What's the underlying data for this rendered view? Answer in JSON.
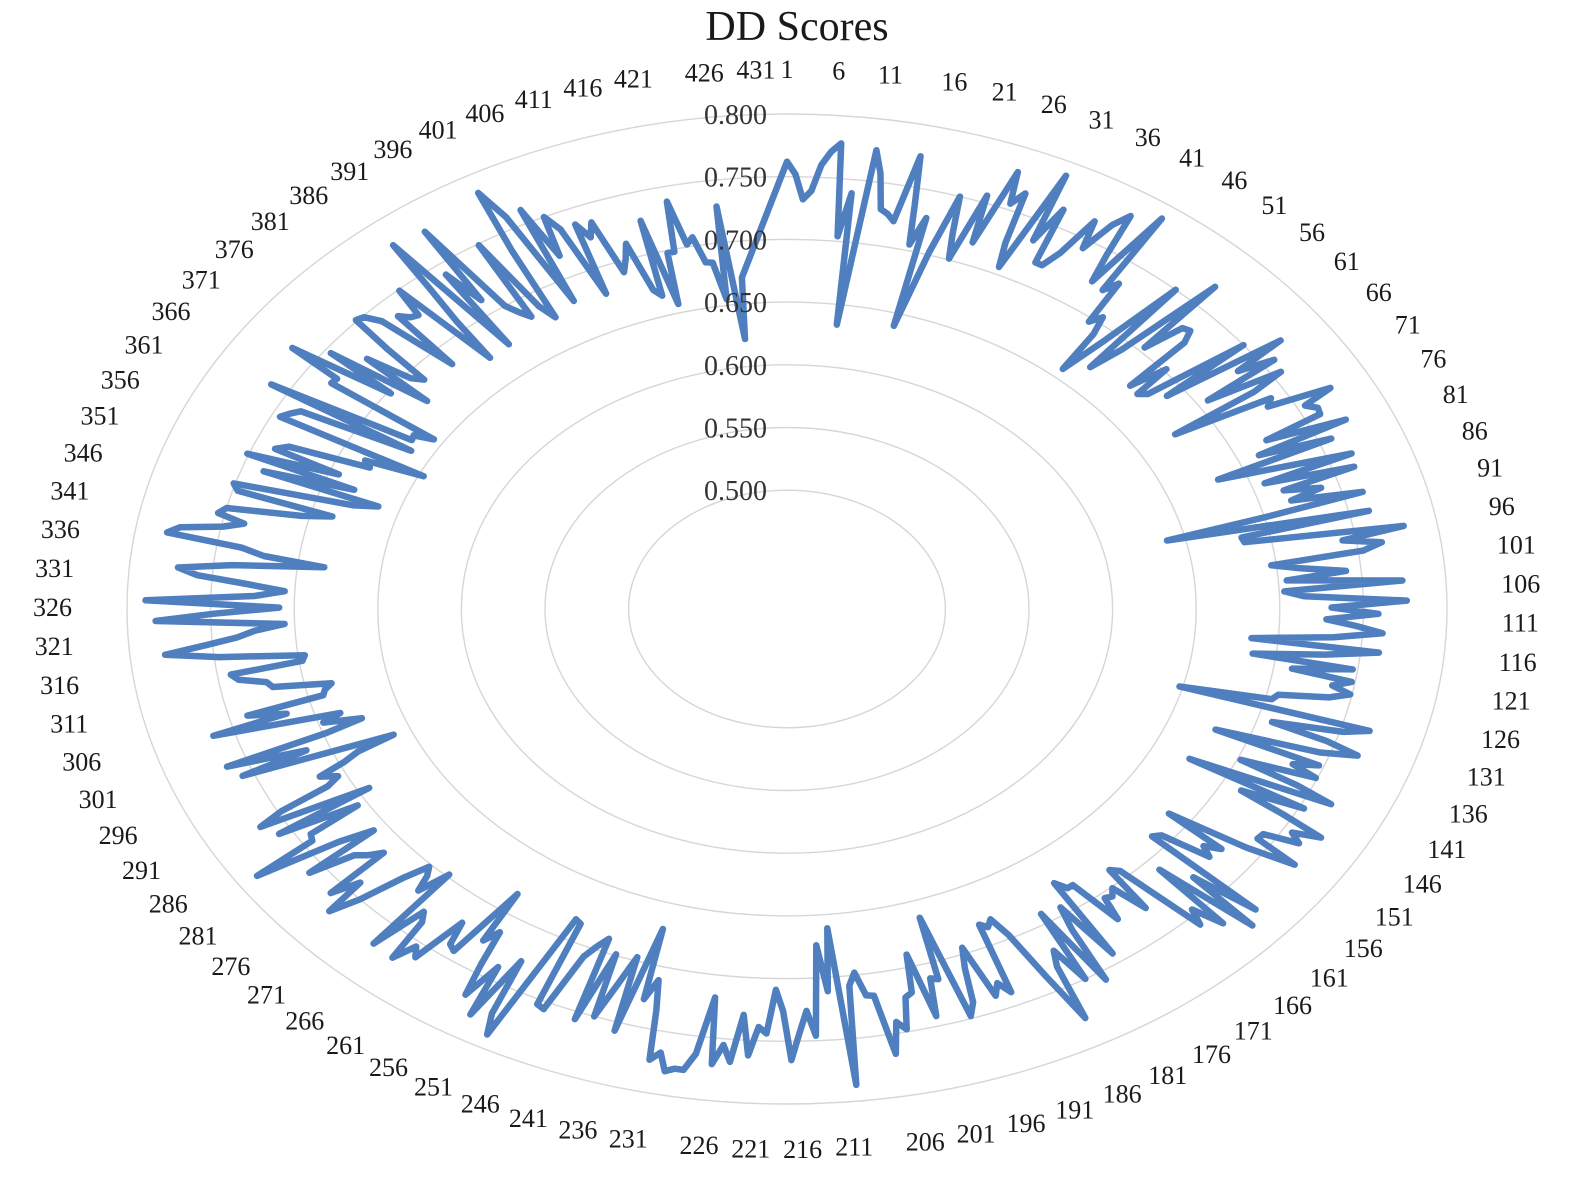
{
  "chart_data": {
    "type": "radar",
    "title": "DD Scores",
    "n_points": 433,
    "label_every": 5,
    "radial_axis": {
      "min": 0.5,
      "max": 0.8,
      "ticks": [
        0.5,
        0.55,
        0.6,
        0.65,
        0.7,
        0.75,
        0.8
      ],
      "tick_labels": [
        "0.500",
        "0.550",
        "0.600",
        "0.650",
        "0.700",
        "0.750",
        "0.800"
      ]
    },
    "series": [
      {
        "color": "#4f7fbf",
        "values": [
          0.762,
          0.752,
          0.732,
          0.739,
          0.76,
          0.771,
          0.778,
          0.704,
          0.739,
          0.634,
          0.775,
          0.757,
          0.729,
          0.726,
          0.721,
          0.775,
          0.738,
          0.705,
          0.728,
          0.64,
          0.702,
          0.75,
          0.721,
          0.701,
          0.756,
          0.718,
          0.78,
          0.755,
          0.766,
          0.725,
          0.706,
          0.789,
          0.734,
          0.764,
          0.719,
          0.719,
          0.733,
          0.765,
          0.743,
          0.768,
          0.78,
          0.747,
          0.724,
          0.789,
          0.722,
          0.732,
          0.697,
          0.705,
          0.691,
          0.658,
          0.691,
          0.75,
          0.67,
          0.693,
          0.768,
          0.704,
          0.731,
          0.733,
          0.724,
          0.677,
          0.702,
          0.676,
          0.681,
          0.75,
          0.689,
          0.77,
          0.735,
          0.758,
          0.707,
          0.756,
          0.734,
          0.676,
          0.74,
          0.735,
          0.775,
          0.755,
          0.761,
          0.76,
          0.722,
          0.772,
          0.713,
          0.758,
          0.683,
          0.719,
          0.765,
          0.708,
          0.763,
          0.717,
          0.739,
          0.719,
          0.762,
          0.7,
          0.639,
          0.762,
          0.683,
          0.684,
          0.78,
          0.742,
          0.765,
          0.753,
          0.697,
          0.714,
          0.741,
          0.705,
          0.774,
          0.703,
          0.715,
          0.776,
          0.731,
          0.759,
          0.728,
          0.746,
          0.762,
          0.733,
          0.684,
          0.761,
          0.729,
          0.686,
          0.747,
          0.711,
          0.748,
          0.737,
          0.749,
          0.737,
          0.707,
          0.704,
          0.648,
          0.767,
          0.752,
          0.709,
          0.745,
          0.766,
          0.744,
          0.679,
          0.747,
          0.732,
          0.749,
          0.702,
          0.741,
          0.766,
          0.674,
          0.753,
          0.713,
          0.744,
          0.773,
          0.756,
          0.764,
          0.742,
          0.741,
          0.771,
          0.739,
          0.686,
          0.728,
          0.718,
          0.726,
          0.693,
          0.689,
          0.774,
          0.729,
          0.781,
          0.71,
          0.767,
          0.746,
          0.758,
          0.694,
          0.689,
          0.726,
          0.701,
          0.706,
          0.704,
          0.722,
          0.684,
          0.684,
          0.676,
          0.742,
          0.694,
          0.713,
          0.757,
          0.692,
          0.75,
          0.721,
          0.733,
          0.777,
          0.736,
          0.697,
          0.681,
          0.686,
          0.682,
          0.739,
          0.729,
          0.738,
          0.695,
          0.711,
          0.738,
          0.748,
          0.664,
          0.714,
          0.712,
          0.742,
          0.69,
          0.72,
          0.723,
          0.748,
          0.741,
          0.766,
          0.718,
          0.717,
          0.698,
          0.708,
          0.787,
          0.661,
          0.711,
          0.674,
          0.746,
          0.726,
          0.744,
          0.765,
          0.726,
          0.709,
          0.744,
          0.739,
          0.762,
          0.73,
          0.768,
          0.755,
          0.771,
          0.718,
          0.764,
          0.778,
          0.778,
          0.781,
          0.767,
          0.774,
          0.735,
          0.711,
          0.728,
          0.671,
          0.757,
          0.697,
          0.722,
          0.75,
          0.699,
          0.756,
          0.689,
          0.697,
          0.708,
          0.756,
          0.754,
          0.685,
          0.683,
          0.789,
          0.773,
          0.728,
          0.78,
          0.739,
          0.768,
          0.743,
          0.715,
          0.726,
          0.684,
          0.743,
          0.74,
          0.722,
          0.761,
          0.754,
          0.77,
          0.737,
          0.73,
          0.769,
          0.698,
          0.72,
          0.708,
          0.702,
          0.72,
          0.75,
          0.77,
          0.741,
          0.76,
          0.715,
          0.724,
          0.73,
          0.76,
          0.709,
          0.731,
          0.787,
          0.744,
          0.742,
          0.706,
          0.758,
          0.693,
          0.765,
          0.748,
          0.714,
          0.705,
          0.715,
          0.697,
          0.686,
          0.661,
          0.757,
          0.714,
          0.763,
          0.698,
          0.674,
          0.697,
          0.685,
          0.763,
          0.716,
          0.739,
          0.691,
          0.689,
          0.684,
          0.719,
          0.722,
          0.738,
          0.742,
          0.698,
          0.696,
          0.747,
          0.779,
          0.755,
          0.735,
          0.724,
          0.706,
          0.783,
          0.748,
          0.709,
          0.789,
          0.724,
          0.706,
          0.729,
          0.759,
          0.771,
          0.739,
          0.684,
          0.721,
          0.735,
          0.781,
          0.774,
          0.749,
          0.737,
          0.754,
          0.75,
          0.705,
          0.687,
          0.747,
          0.751,
          0.678,
          0.663,
          0.737,
          0.681,
          0.751,
          0.694,
          0.737,
          0.73,
          0.679,
          0.684,
          0.647,
          0.745,
          0.741,
          0.736,
          0.663,
          0.762,
          0.667,
          0.668,
          0.656,
          0.732,
          0.731,
          0.767,
          0.698,
          0.746,
          0.677,
          0.726,
          0.696,
          0.689,
          0.722,
          0.751,
          0.749,
          0.739,
          0.685,
          0.735,
          0.729,
          0.727,
          0.749,
          0.673,
          0.708,
          0.738,
          0.779,
          0.674,
          0.741,
          0.712,
          0.776,
          0.7,
          0.691,
          0.684,
          0.749,
          0.689,
          0.676,
          0.735,
          0.785,
          0.76,
          0.682,
          0.761,
          0.718,
          0.75,
          0.737,
          0.679,
          0.737,
          0.724,
          0.735,
          0.691,
          0.7,
          0.712,
          0.672,
          0.666,
          0.727,
          0.657,
          0.698,
          0.698,
          0.738,
          0.702,
          0.707,
          0.686,
          0.685,
          0.655,
          0.729,
          0.622,
          0.671
        ]
      }
    ]
  }
}
